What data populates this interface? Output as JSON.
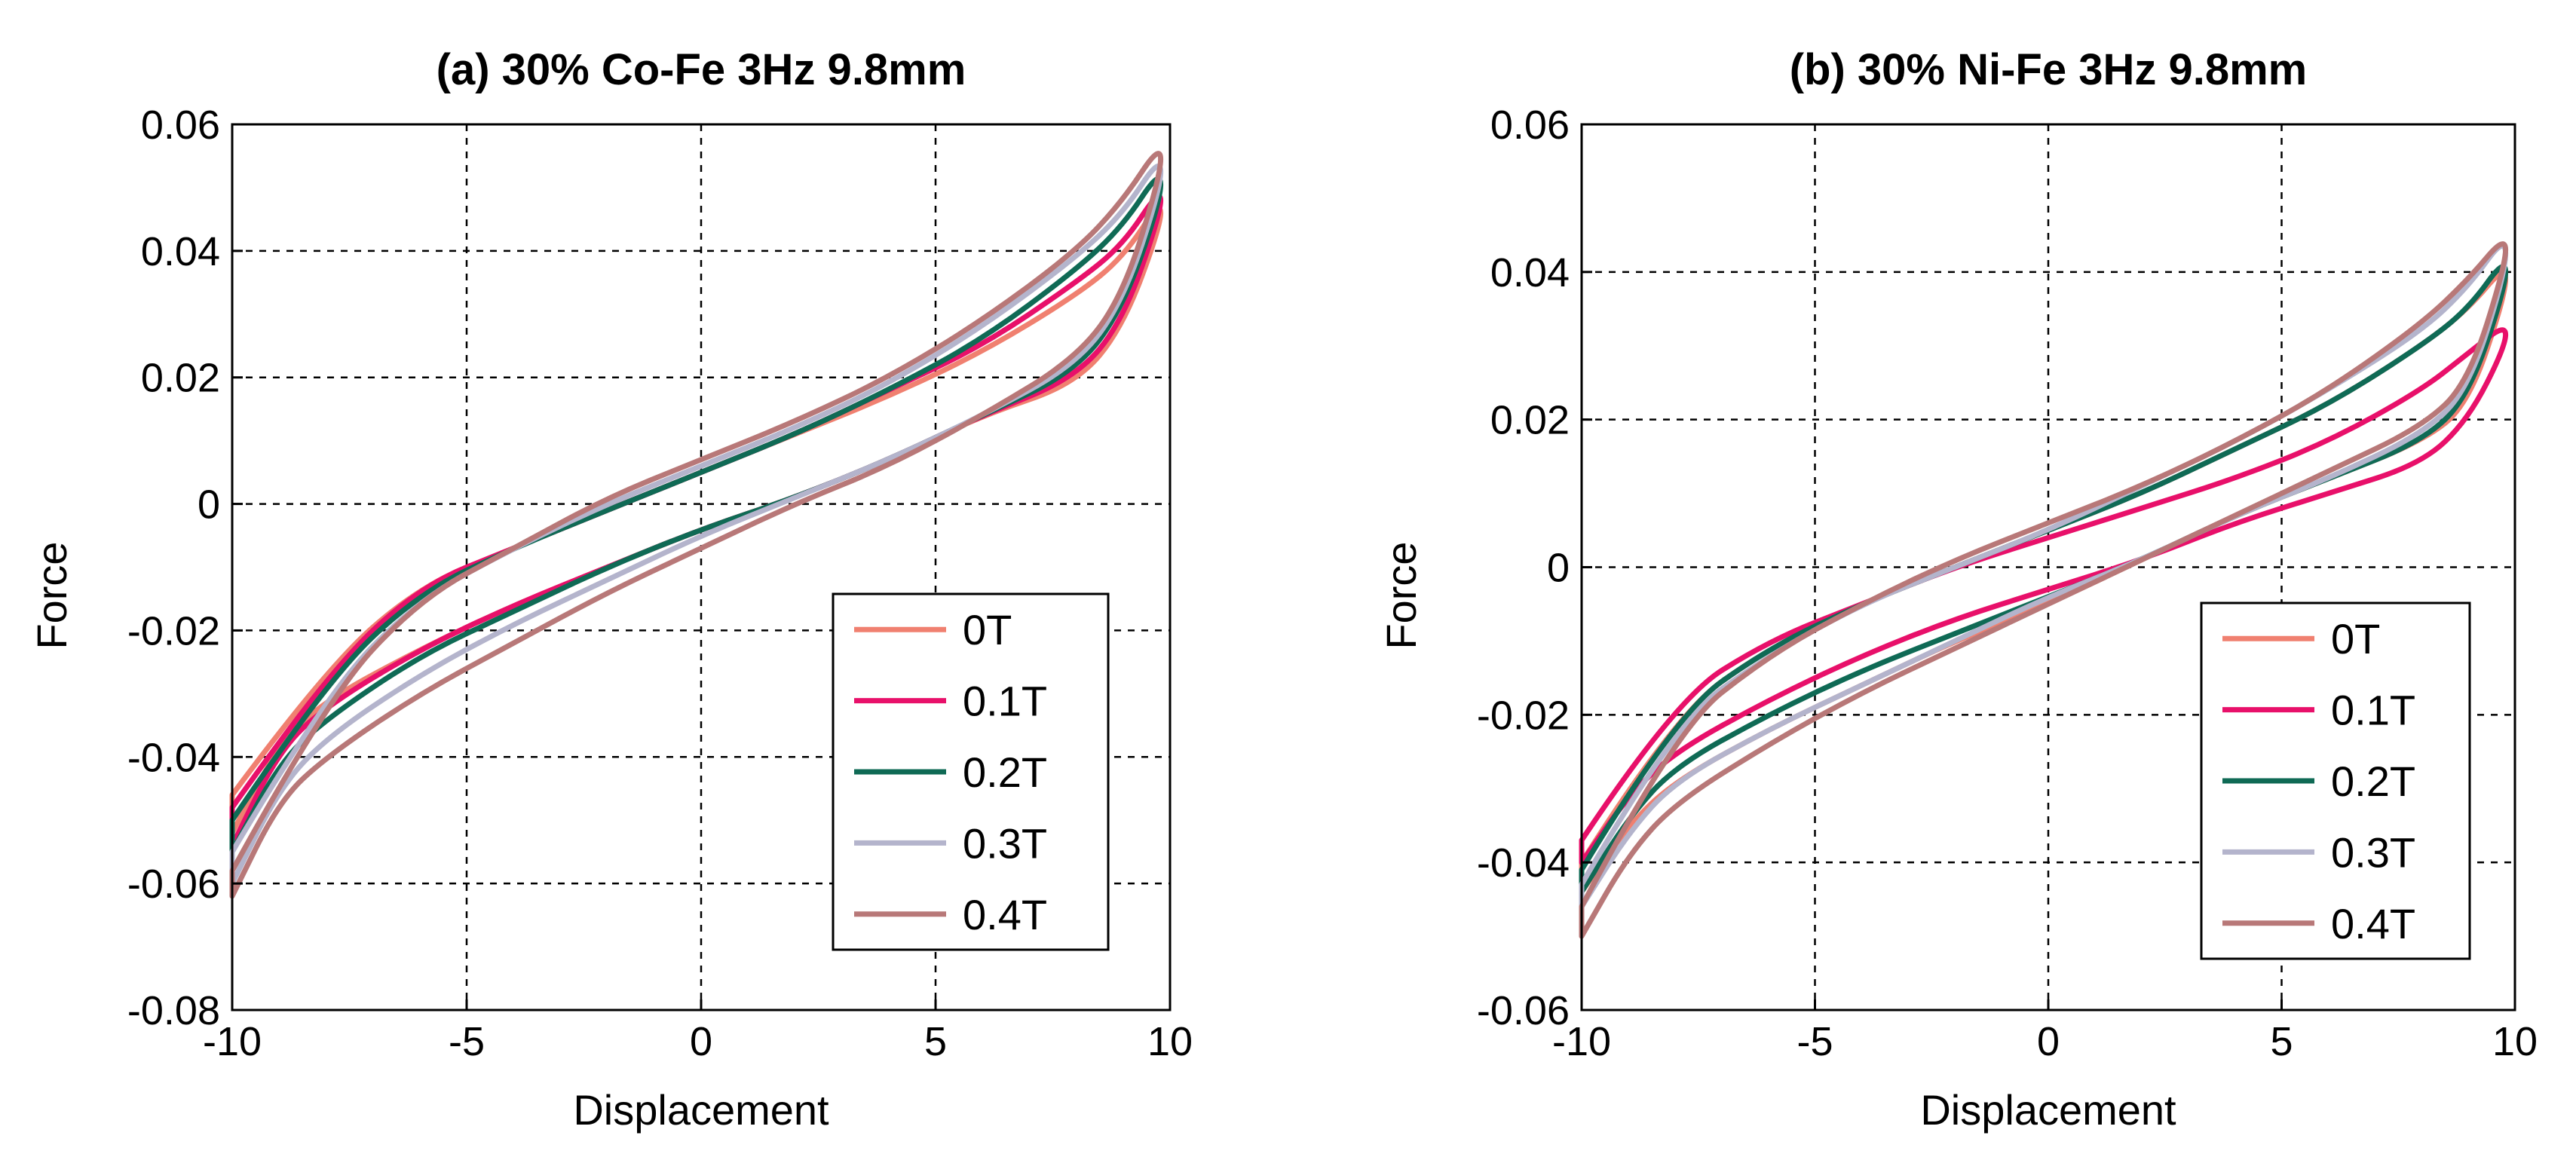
{
  "chart_data": [
    {
      "type": "line",
      "title": "(a) 30% Co-Fe  3Hz 9.8mm",
      "xlabel": "Displacement",
      "ylabel": "Force",
      "xlim": [
        -10,
        10
      ],
      "ylim": [
        -0.08,
        0.06
      ],
      "xticks": [
        -10,
        -5,
        0,
        5,
        10
      ],
      "yticks": [
        -0.08,
        -0.06,
        -0.04,
        -0.02,
        0,
        0.02,
        0.04,
        0.06
      ],
      "xtick_labels": [
        "-10",
        "-5",
        "0",
        "5",
        "10"
      ],
      "ytick_labels": [
        "-0.08",
        "-0.06",
        "-0.04",
        "-0.02",
        "0",
        "0.02",
        "0.04",
        "0.06"
      ],
      "grid": true,
      "legend_position": "bottom-right",
      "series": [
        {
          "name": "0T",
          "color": "#f08070",
          "upper_branch": {
            "x": [
              -10,
              -8,
              -6,
              -4,
              -2,
              0,
              2,
              4,
              6,
              8,
              9,
              9.8
            ],
            "y": [
              -0.046,
              -0.026,
              -0.013,
              -0.007,
              -0.001,
              0.005,
              0.011,
              0.017,
              0.024,
              0.033,
              0.039,
              0.048
            ]
          },
          "lower_branch": {
            "x": [
              9.8,
              9,
              8,
              6,
              4,
              2,
              0,
              -2,
              -4,
              -6,
              -8,
              -9,
              -10
            ],
            "y": [
              0.044,
              0.028,
              0.019,
              0.014,
              0.007,
              0.001,
              -0.004,
              -0.01,
              -0.016,
              -0.023,
              -0.031,
              -0.038,
              -0.052
            ]
          }
        },
        {
          "name": "0.1T",
          "color": "#e8106a",
          "upper_branch": {
            "x": [
              -10,
              -8,
              -6,
              -4,
              -2,
              0,
              2,
              4,
              6,
              8,
              9,
              9.8
            ],
            "y": [
              -0.048,
              -0.027,
              -0.013,
              -0.007,
              -0.001,
              0.005,
              0.011,
              0.018,
              0.025,
              0.035,
              0.041,
              0.05
            ]
          },
          "lower_branch": {
            "x": [
              9.8,
              9,
              8,
              6,
              4,
              2,
              0,
              -2,
              -4,
              -6,
              -8,
              -9,
              -10
            ],
            "y": [
              0.046,
              0.029,
              0.02,
              0.014,
              0.007,
              0.001,
              -0.004,
              -0.01,
              -0.016,
              -0.023,
              -0.032,
              -0.039,
              -0.054
            ]
          }
        },
        {
          "name": "0.2T",
          "color": "#0f6a55",
          "upper_branch": {
            "x": [
              -10,
              -8,
              -6,
              -4,
              -2,
              0,
              2,
              4,
              6,
              8,
              9,
              9.8
            ],
            "y": [
              -0.05,
              -0.028,
              -0.014,
              -0.007,
              -0.001,
              0.005,
              0.011,
              0.018,
              0.026,
              0.037,
              0.044,
              0.053
            ]
          },
          "lower_branch": {
            "x": [
              9.8,
              9,
              8,
              6,
              4,
              2,
              0,
              -2,
              -4,
              -6,
              -8,
              -9,
              -10
            ],
            "y": [
              0.048,
              0.031,
              0.021,
              0.014,
              0.007,
              0.001,
              -0.004,
              -0.01,
              -0.017,
              -0.024,
              -0.034,
              -0.041,
              -0.055
            ]
          }
        },
        {
          "name": "0.3T",
          "color": "#b4b4cc",
          "upper_branch": {
            "x": [
              -10,
              -8,
              -6,
              -4,
              -2,
              0,
              2,
              4,
              6,
              8,
              9,
              9.8
            ],
            "y": [
              -0.055,
              -0.03,
              -0.015,
              -0.007,
              0.0,
              0.006,
              0.012,
              0.019,
              0.028,
              0.039,
              0.046,
              0.055
            ]
          },
          "lower_branch": {
            "x": [
              9.8,
              9,
              8,
              6,
              4,
              2,
              0,
              -2,
              -4,
              -6,
              -8,
              -9,
              -10
            ],
            "y": [
              0.05,
              0.032,
              0.022,
              0.014,
              0.007,
              0.001,
              -0.005,
              -0.012,
              -0.019,
              -0.027,
              -0.037,
              -0.045,
              -0.06
            ]
          }
        },
        {
          "name": "0.4T",
          "color": "#b87878",
          "upper_branch": {
            "x": [
              -10,
              -8,
              -6,
              -4,
              -2,
              0,
              2,
              4,
              6,
              8,
              9,
              9.8
            ],
            "y": [
              -0.058,
              -0.031,
              -0.015,
              -0.007,
              0.001,
              0.007,
              0.013,
              0.02,
              0.029,
              0.04,
              0.048,
              0.057
            ]
          },
          "lower_branch": {
            "x": [
              9.8,
              9,
              8,
              6,
              4,
              2,
              0,
              -2,
              -4,
              -6,
              -8,
              -9,
              -10
            ],
            "y": [
              0.052,
              0.033,
              0.023,
              0.014,
              0.006,
              0.0,
              -0.007,
              -0.014,
              -0.022,
              -0.03,
              -0.04,
              -0.047,
              -0.062
            ]
          }
        }
      ]
    },
    {
      "type": "line",
      "title": "(b) 30% Ni-Fe  3Hz 9.8mm",
      "xlabel": "Displacement",
      "ylabel": "Force",
      "xlim": [
        -10,
        10
      ],
      "ylim": [
        -0.06,
        0.06
      ],
      "xticks": [
        -10,
        -5,
        0,
        5,
        10
      ],
      "yticks": [
        -0.06,
        -0.04,
        -0.02,
        0,
        0.02,
        0.04,
        0.06
      ],
      "xtick_labels": [
        "-10",
        "-5",
        "0",
        "5",
        "10"
      ],
      "ytick_labels": [
        "-0.06",
        "-0.04",
        "-0.02",
        "0",
        "0.02",
        "0.04",
        "0.06"
      ],
      "grid": true,
      "legend_position": "bottom-right",
      "series": [
        {
          "name": "0T",
          "color": "#f08070",
          "upper_branch": {
            "x": [
              -10,
              -8,
              -6,
              -4,
              -2,
              0,
              2,
              4,
              6,
              8,
              9,
              9.8
            ],
            "y": [
              -0.04,
              -0.02,
              -0.011,
              -0.005,
              0.0,
              0.005,
              0.01,
              0.016,
              0.022,
              0.03,
              0.035,
              0.041
            ]
          },
          "lower_branch": {
            "x": [
              9.8,
              9,
              8,
              6,
              4,
              2,
              0,
              -2,
              -4,
              -6,
              -8,
              -9,
              -10
            ],
            "y": [
              0.037,
              0.022,
              0.017,
              0.012,
              0.007,
              0.001,
              -0.005,
              -0.01,
              -0.016,
              -0.022,
              -0.029,
              -0.035,
              -0.044
            ]
          }
        },
        {
          "name": "0.1T",
          "color": "#e8106a",
          "upper_branch": {
            "x": [
              -10,
              -8,
              -6,
              -4,
              -2,
              0,
              2,
              4,
              6,
              8,
              9,
              9.8
            ],
            "y": [
              -0.037,
              -0.018,
              -0.01,
              -0.005,
              0.0,
              0.004,
              0.008,
              0.012,
              0.017,
              0.024,
              0.029,
              0.033
            ]
          },
          "lower_branch": {
            "x": [
              9.8,
              9,
              8,
              6,
              4,
              2,
              0,
              -2,
              -4,
              -6,
              -8,
              -9,
              -10
            ],
            "y": [
              0.03,
              0.02,
              0.014,
              0.01,
              0.006,
              0.001,
              -0.003,
              -0.007,
              -0.012,
              -0.018,
              -0.025,
              -0.031,
              -0.04
            ]
          }
        },
        {
          "name": "0.2T",
          "color": "#0f6a55",
          "upper_branch": {
            "x": [
              -10,
              -8,
              -6,
              -4,
              -2,
              0,
              2,
              4,
              6,
              8,
              9,
              9.8
            ],
            "y": [
              -0.041,
              -0.02,
              -0.011,
              -0.005,
              0.0,
              0.005,
              0.01,
              0.016,
              0.022,
              0.03,
              0.035,
              0.042
            ]
          },
          "lower_branch": {
            "x": [
              9.8,
              9,
              8,
              6,
              4,
              2,
              0,
              -2,
              -4,
              -6,
              -8,
              -9,
              -10
            ],
            "y": [
              0.038,
              0.023,
              0.017,
              0.012,
              0.007,
              0.001,
              -0.004,
              -0.009,
              -0.014,
              -0.02,
              -0.027,
              -0.034,
              -0.044
            ]
          }
        },
        {
          "name": "0.3T",
          "color": "#b4b4cc",
          "upper_branch": {
            "x": [
              -10,
              -8,
              -6,
              -4,
              -2,
              0,
              2,
              4,
              6,
              8,
              9,
              9.8
            ],
            "y": [
              -0.043,
              -0.021,
              -0.012,
              -0.005,
              0.0,
              0.005,
              0.011,
              0.017,
              0.024,
              0.032,
              0.038,
              0.045
            ]
          },
          "lower_branch": {
            "x": [
              9.8,
              9,
              8,
              6,
              4,
              2,
              0,
              -2,
              -4,
              -6,
              -8,
              -9,
              -10
            ],
            "y": [
              0.04,
              0.024,
              0.018,
              0.012,
              0.007,
              0.001,
              -0.004,
              -0.01,
              -0.016,
              -0.022,
              -0.029,
              -0.036,
              -0.046
            ]
          }
        },
        {
          "name": "0.4T",
          "color": "#b87878",
          "upper_branch": {
            "x": [
              -10,
              -8,
              -6,
              -4,
              -2,
              0,
              2,
              4,
              6,
              8,
              9,
              9.8
            ],
            "y": [
              -0.046,
              -0.022,
              -0.012,
              -0.005,
              0.001,
              0.006,
              0.011,
              0.017,
              0.024,
              0.033,
              0.039,
              0.045
            ]
          },
          "lower_branch": {
            "x": [
              9.8,
              9,
              8,
              6,
              4,
              2,
              0,
              -2,
              -4,
              -6,
              -8,
              -9,
              -10
            ],
            "y": [
              0.041,
              0.025,
              0.019,
              0.013,
              0.007,
              0.001,
              -0.005,
              -0.011,
              -0.017,
              -0.024,
              -0.032,
              -0.039,
              -0.05
            ]
          }
        }
      ]
    }
  ]
}
